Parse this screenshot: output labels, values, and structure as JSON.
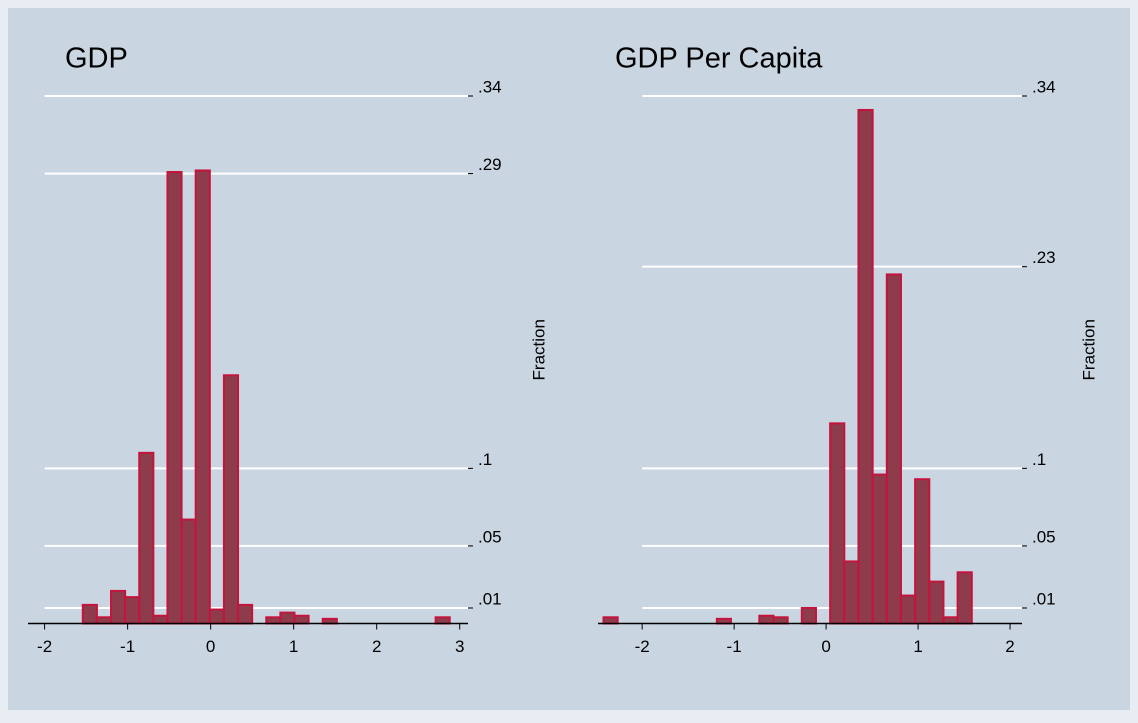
{
  "chart_data": [
    {
      "type": "histogram",
      "title": "GDP",
      "ylabel": "Fraction",
      "bins": [
        -1.54,
        -1.37,
        -1.2,
        -1.03,
        -0.86,
        -0.69,
        -0.52,
        -0.35,
        -0.18,
        -0.01,
        0.16,
        0.33,
        0.5,
        0.67,
        0.84,
        1.01,
        1.18,
        1.35,
        1.52,
        1.69,
        1.86,
        2.03,
        2.2,
        2.37,
        2.54,
        2.71,
        2.88
      ],
      "values": [
        0.012,
        0.004,
        0.021,
        0.017,
        0.11,
        0.005,
        0.291,
        0.067,
        0.292,
        0.009,
        0.16,
        0.012,
        0,
        0.004,
        0.007,
        0.005,
        0,
        0.003,
        0,
        0,
        0,
        0,
        0,
        0,
        0,
        0.004
      ],
      "xlim": [
        -2.2,
        3.1
      ],
      "ylim": [
        0,
        0.34
      ],
      "xticks": [
        -2,
        -1,
        0,
        1,
        2,
        3
      ],
      "yticks": [
        {
          "value": 0.01,
          "label": ".01"
        },
        {
          "value": 0.05,
          "label": ".05"
        },
        {
          "value": 0.1,
          "label": ".1"
        },
        {
          "value": 0.29,
          "label": ".29"
        },
        {
          "value": 0.34,
          "label": ".34"
        }
      ],
      "color": "#8e3b4b",
      "edgecolor": "#c4143e",
      "grid": true
    },
    {
      "type": "histogram",
      "title": "GDP Per Capita",
      "ylabel": "Fraction",
      "bins": [
        -2.42,
        -2.266,
        -2.112,
        -1.958,
        -1.804,
        -1.65,
        -1.496,
        -1.342,
        -1.188,
        -1.034,
        -0.88,
        -0.726,
        -0.572,
        -0.418,
        -0.264,
        -0.11,
        0.044,
        0.198,
        0.352,
        0.506,
        0.66,
        0.814,
        0.968,
        1.122,
        1.276,
        1.43,
        1.584
      ],
      "values": [
        0.004,
        0,
        0,
        0,
        0,
        0,
        0,
        0,
        0.003,
        0,
        0,
        0.005,
        0.004,
        0,
        0.01,
        0,
        0.129,
        0.04,
        0.331,
        0.096,
        0.225,
        0.018,
        0.093,
        0.027,
        0.004,
        0.033
      ],
      "xlim": [
        -2.48,
        2.13
      ],
      "ylim": [
        0,
        0.34
      ],
      "xticks": [
        -2,
        -1,
        0,
        1,
        2
      ],
      "yticks": [
        {
          "value": 0.01,
          "label": ".01"
        },
        {
          "value": 0.05,
          "label": ".05"
        },
        {
          "value": 0.1,
          "label": ".1"
        },
        {
          "value": 0.23,
          "label": ".23"
        },
        {
          "value": 0.34,
          "label": ".34"
        }
      ],
      "color": "#8e3b4b",
      "edgecolor": "#c4143e",
      "grid": true
    }
  ]
}
